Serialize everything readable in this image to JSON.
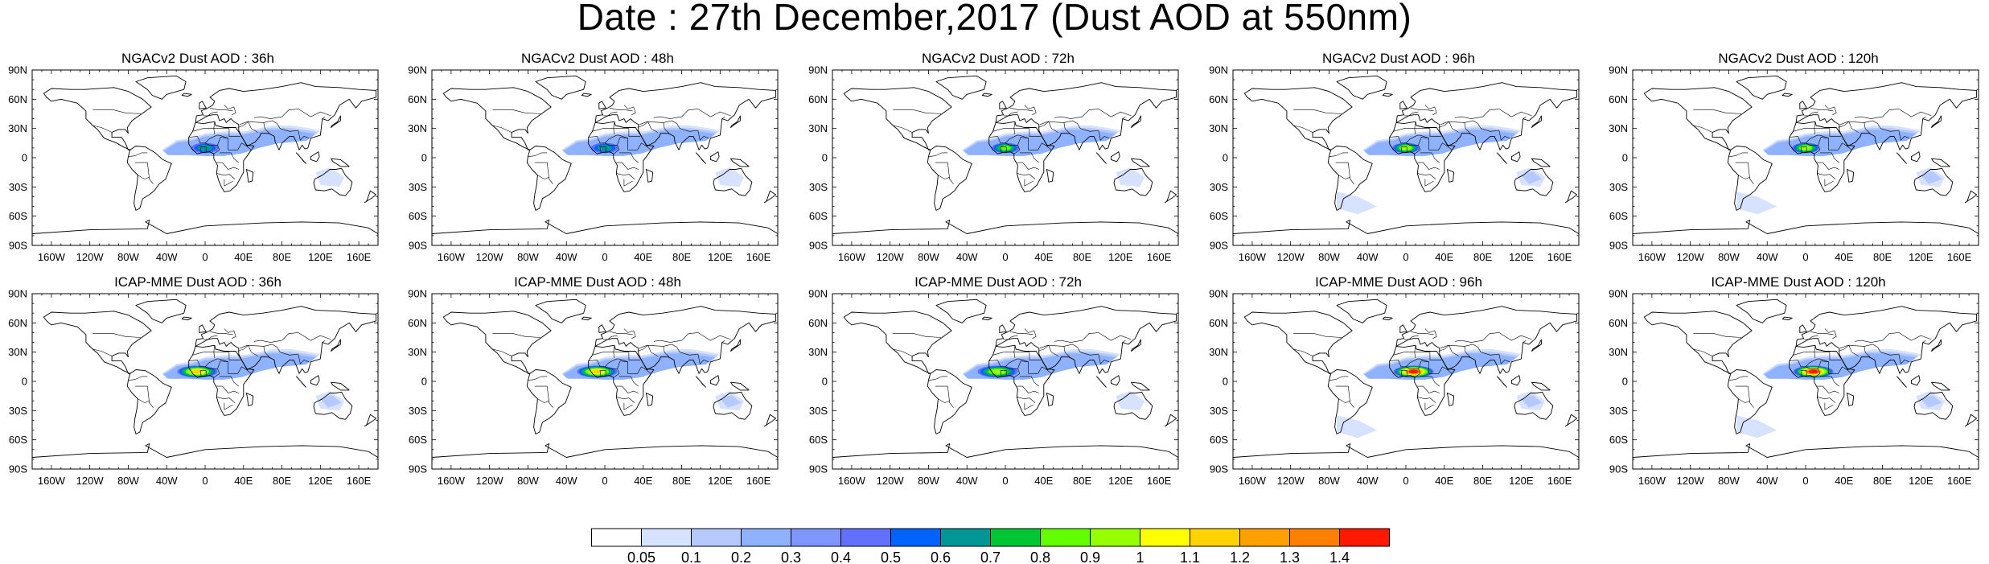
{
  "title": "Date : 27th December,2017 (Dust AOD at 550nm)",
  "lat_labels": [
    "90N",
    "60N",
    "30N",
    "0",
    "30S",
    "60S",
    "90S"
  ],
  "lon_labels": [
    "160W",
    "120W",
    "80W",
    "40W",
    "0",
    "40E",
    "80E",
    "120E",
    "160E"
  ],
  "panels": [
    {
      "title": "NGACv2 Dust AOD : 36h",
      "peak": 0.6
    },
    {
      "title": "NGACv2 Dust AOD : 48h",
      "peak": 0.6
    },
    {
      "title": "NGACv2 Dust AOD : 72h",
      "peak": 0.8
    },
    {
      "title": "NGACv2 Dust AOD : 96h",
      "peak": 0.9
    },
    {
      "title": "NGACv2 Dust AOD : 120h",
      "peak": 0.9
    },
    {
      "title": "ICAP-MME Dust AOD : 36h",
      "peak": 1.1
    },
    {
      "title": "ICAP-MME Dust AOD : 48h",
      "peak": 1.1
    },
    {
      "title": "ICAP-MME Dust AOD : 72h",
      "peak": 0.9
    },
    {
      "title": "ICAP-MME Dust AOD : 96h",
      "peak": 1.4
    },
    {
      "title": "ICAP-MME Dust AOD : 120h",
      "peak": 1.4
    }
  ],
  "colorbar": {
    "labels": [
      "0.05",
      "0.1",
      "0.2",
      "0.3",
      "0.4",
      "0.5",
      "0.6",
      "0.7",
      "0.8",
      "0.9",
      "1",
      "1.1",
      "1.2",
      "1.3",
      "1.4"
    ],
    "colors": [
      "#ffffff",
      "#d6e2ff",
      "#b5c9ff",
      "#8eb2ff",
      "#7f96ff",
      "#6370ff",
      "#0063ff",
      "#009696",
      "#00c633",
      "#63ff00",
      "#96ff00",
      "#ffff00",
      "#ffd200",
      "#ffa000",
      "#ff7f00",
      "#ff1900"
    ]
  }
}
